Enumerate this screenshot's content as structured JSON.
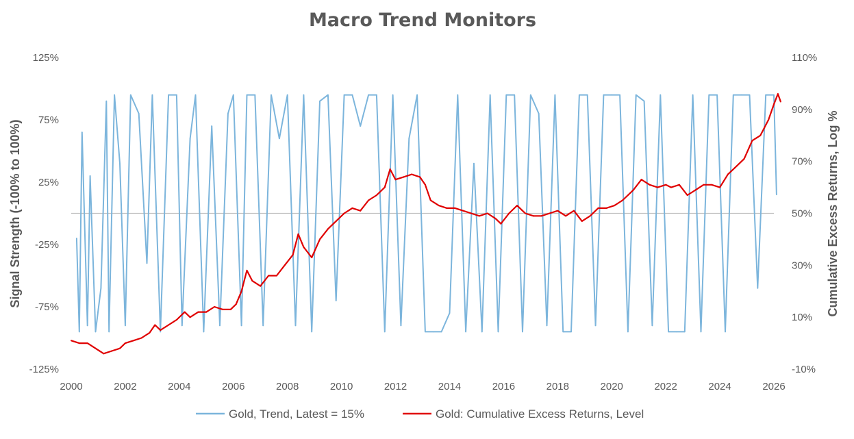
{
  "chart_data": {
    "type": "line",
    "title": "Macro Trend Monitors",
    "ylabel_left": "Signal Strength (-100% to 100%)",
    "ylabel_right": "Cumulative Excess Returns, Log %",
    "ylim_left": [
      -125,
      125
    ],
    "ylim_right": [
      -10,
      110
    ],
    "xlim": [
      2000,
      2026
    ],
    "y_left_ticks": [
      "125%",
      "75%",
      "25%",
      "-25%",
      "-75%",
      "-125%"
    ],
    "y_right_ticks": [
      "110%",
      "90%",
      "70%",
      "50%",
      "30%",
      "10%",
      "-10%"
    ],
    "x_ticks": [
      "2000",
      "2002",
      "2004",
      "2006",
      "2008",
      "2010",
      "2012",
      "2014",
      "2016",
      "2018",
      "2020",
      "2022",
      "2024",
      "2026"
    ],
    "grid": false,
    "legend_position": "bottom",
    "colors": {
      "trend": "#7cb5dc",
      "returns": "#e00000",
      "zero_line": "#bfbfbf",
      "text": "#595959"
    },
    "series": [
      {
        "name": "Gold, Trend, Latest = 15%",
        "axis": "left",
        "x": [
          2000.2,
          2000.3,
          2000.4,
          2000.6,
          2000.7,
          2000.9,
          2001.1,
          2001.3,
          2001.4,
          2001.6,
          2001.8,
          2002.0,
          2002.2,
          2002.5,
          2002.8,
          2003.0,
          2003.3,
          2003.6,
          2003.9,
          2004.1,
          2004.4,
          2004.6,
          2004.9,
          2005.2,
          2005.5,
          2005.8,
          2006.0,
          2006.3,
          2006.5,
          2006.8,
          2007.1,
          2007.4,
          2007.7,
          2008.0,
          2008.3,
          2008.6,
          2008.9,
          2009.2,
          2009.5,
          2009.8,
          2010.1,
          2010.4,
          2010.7,
          2011.0,
          2011.3,
          2011.6,
          2011.9,
          2012.2,
          2012.5,
          2012.8,
          2013.1,
          2013.4,
          2013.7,
          2014.0,
          2014.3,
          2014.6,
          2014.9,
          2015.2,
          2015.5,
          2015.8,
          2016.1,
          2016.4,
          2016.7,
          2017.0,
          2017.3,
          2017.6,
          2017.9,
          2018.2,
          2018.5,
          2018.8,
          2019.1,
          2019.4,
          2019.7,
          2020.0,
          2020.3,
          2020.6,
          2020.9,
          2021.2,
          2021.5,
          2021.8,
          2022.1,
          2022.4,
          2022.7,
          2023.0,
          2023.3,
          2023.6,
          2023.9,
          2024.2,
          2024.5,
          2024.8,
          2025.1,
          2025.4,
          2025.7,
          2026.0,
          2026.1
        ],
        "values": [
          -20,
          -95,
          65,
          -90,
          30,
          -95,
          -60,
          90,
          -95,
          95,
          40,
          -90,
          95,
          80,
          -40,
          95,
          -95,
          95,
          95,
          -90,
          60,
          95,
          -95,
          70,
          -90,
          80,
          95,
          -90,
          95,
          95,
          -90,
          95,
          60,
          95,
          -90,
          95,
          -95,
          90,
          95,
          -70,
          95,
          95,
          70,
          95,
          95,
          -95,
          95,
          -90,
          60,
          95,
          -95,
          -95,
          -95,
          -80,
          95,
          -95,
          40,
          -95,
          95,
          -95,
          95,
          95,
          -95,
          95,
          80,
          -90,
          95,
          -95,
          -95,
          95,
          95,
          -90,
          95,
          95,
          95,
          -95,
          95,
          90,
          -90,
          95,
          -95,
          -95,
          -95,
          95,
          -95,
          95,
          95,
          -95,
          95,
          95,
          95,
          -60,
          95,
          95,
          15
        ]
      },
      {
        "name": "Gold: Cumulative Excess Returns, Level",
        "axis": "right",
        "x": [
          2000.0,
          2000.3,
          2000.6,
          2000.9,
          2001.2,
          2001.5,
          2001.8,
          2002.0,
          2002.3,
          2002.6,
          2002.9,
          2003.1,
          2003.3,
          2003.6,
          2003.9,
          2004.2,
          2004.4,
          2004.7,
          2005.0,
          2005.3,
          2005.6,
          2005.9,
          2006.1,
          2006.3,
          2006.5,
          2006.7,
          2007.0,
          2007.3,
          2007.6,
          2007.9,
          2008.2,
          2008.4,
          2008.6,
          2008.9,
          2009.2,
          2009.5,
          2009.8,
          2010.1,
          2010.4,
          2010.7,
          2011.0,
          2011.3,
          2011.6,
          2011.8,
          2012.0,
          2012.3,
          2012.6,
          2012.9,
          2013.1,
          2013.3,
          2013.6,
          2013.9,
          2014.2,
          2014.5,
          2014.8,
          2015.1,
          2015.4,
          2015.7,
          2015.9,
          2016.2,
          2016.5,
          2016.8,
          2017.1,
          2017.4,
          2017.7,
          2018.0,
          2018.3,
          2018.6,
          2018.9,
          2019.2,
          2019.5,
          2019.8,
          2020.1,
          2020.4,
          2020.6,
          2020.8,
          2021.1,
          2021.4,
          2021.7,
          2022.0,
          2022.2,
          2022.5,
          2022.8,
          2023.1,
          2023.4,
          2023.7,
          2024.0,
          2024.3,
          2024.6,
          2024.9,
          2025.2,
          2025.5,
          2025.8,
          2026.0,
          2026.15,
          2026.25
        ],
        "values": [
          1,
          0,
          0,
          -2,
          -4,
          -3,
          -2,
          0,
          1,
          2,
          4,
          7,
          5,
          7,
          9,
          12,
          10,
          12,
          12,
          14,
          13,
          13,
          15,
          20,
          28,
          24,
          22,
          26,
          26,
          30,
          34,
          42,
          37,
          33,
          40,
          44,
          47,
          50,
          52,
          51,
          55,
          57,
          60,
          67,
          63,
          64,
          65,
          64,
          61,
          55,
          53,
          52,
          52,
          51,
          50,
          49,
          50,
          48,
          46,
          50,
          53,
          50,
          49,
          49,
          50,
          51,
          49,
          51,
          47,
          49,
          52,
          52,
          53,
          55,
          57,
          59,
          63,
          61,
          60,
          61,
          60,
          61,
          57,
          59,
          61,
          61,
          60,
          65,
          68,
          71,
          78,
          80,
          86,
          92,
          96,
          93
        ]
      }
    ]
  }
}
